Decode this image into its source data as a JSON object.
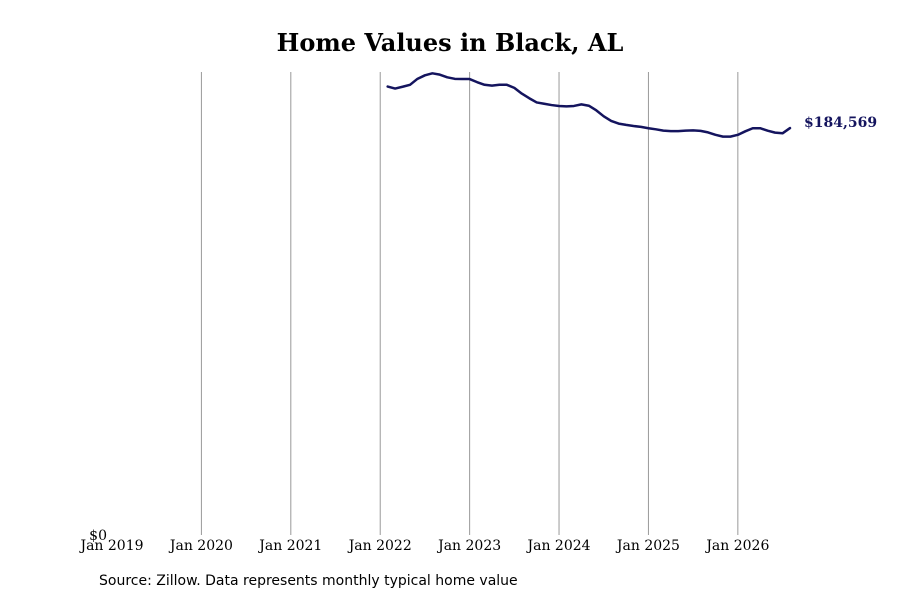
{
  "chart_data": {
    "type": "line",
    "title": "Home Values in Black, AL",
    "xlabel": "",
    "ylabel": "",
    "x_ticks": [
      "Jan 2019",
      "Jan 2020",
      "Jan 2021",
      "Jan 2022",
      "Jan 2023",
      "Jan 2024",
      "Jan 2025",
      "Jan 2026"
    ],
    "x_range": [
      "2019-01",
      "2026-08"
    ],
    "y_ticks": [
      {
        "value": 0,
        "label": "$0"
      }
    ],
    "ylim": [
      0,
      210000
    ],
    "grid": {
      "vertical": true,
      "horizontal": false
    },
    "line_color": "#14145e",
    "grid_color": "#999999",
    "end_label": "$184,569",
    "series": [
      {
        "x": [
          "2022-02",
          "2022-03",
          "2022-04",
          "2022-05",
          "2022-06",
          "2022-07",
          "2022-08",
          "2022-09",
          "2022-10",
          "2022-11",
          "2022-12",
          "2023-01",
          "2023-02",
          "2023-03",
          "2023-04",
          "2023-05",
          "2023-06",
          "2023-07",
          "2023-08",
          "2023-09",
          "2023-10",
          "2023-11",
          "2023-12",
          "2024-01",
          "2024-02",
          "2024-03",
          "2024-04",
          "2024-05",
          "2024-06",
          "2024-07",
          "2024-08",
          "2024-09",
          "2024-10",
          "2024-11",
          "2024-12",
          "2025-01",
          "2025-02",
          "2025-03",
          "2025-04",
          "2025-05",
          "2025-06",
          "2025-07",
          "2025-08",
          "2025-09",
          "2025-10",
          "2025-11",
          "2025-12",
          "2026-01",
          "2026-02",
          "2026-03",
          "2026-04",
          "2026-05",
          "2026-06",
          "2026-07",
          "2026-08"
        ],
        "values": [
          203400,
          202500,
          203300,
          204200,
          206900,
          208500,
          209400,
          208800,
          207600,
          206900,
          206800,
          206800,
          205400,
          204200,
          203800,
          204200,
          204200,
          202800,
          200200,
          198100,
          196200,
          195600,
          195000,
          194600,
          194400,
          194600,
          195300,
          194700,
          192600,
          189900,
          187800,
          186600,
          186000,
          185500,
          185100,
          184500,
          184000,
          183400,
          183200,
          183200,
          183400,
          183500,
          183300,
          182600,
          181500,
          180700,
          180700,
          181500,
          183100,
          184500,
          184500,
          183400,
          182500,
          182200,
          184569
        ]
      }
    ]
  },
  "source_note": "Source: Zillow. Data represents monthly typical home value"
}
